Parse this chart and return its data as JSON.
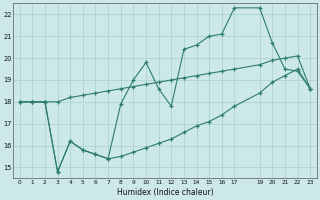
{
  "bg_color": "#cce8e8",
  "line_color": "#2d7d6e",
  "grid_color": "#aacfcf",
  "xlabel": "Humidex (Indice chaleur)",
  "xlim": [
    -0.5,
    23.5
  ],
  "ylim": [
    14.5,
    22.5
  ],
  "xtick_positions": [
    0,
    1,
    2,
    3,
    4,
    5,
    6,
    7,
    8,
    9,
    10,
    11,
    12,
    13,
    14,
    15,
    16,
    17,
    19,
    20,
    21,
    22,
    23
  ],
  "xtick_labels": [
    "0",
    "1",
    "2",
    "3",
    "4",
    "5",
    "6",
    "7",
    "8",
    "9",
    "10",
    "11",
    "12",
    "13",
    "14",
    "15",
    "16",
    "17",
    "19",
    "20",
    "21",
    "22",
    "23"
  ],
  "yticks": [
    15,
    16,
    17,
    18,
    19,
    20,
    21,
    22
  ],
  "x_all": [
    0,
    1,
    2,
    3,
    4,
    5,
    6,
    7,
    8,
    9,
    10,
    11,
    12,
    13,
    14,
    15,
    16,
    17,
    19,
    20,
    21,
    22,
    23
  ],
  "line1_y": [
    18.0,
    18.0,
    18.0,
    18.0,
    18.2,
    18.3,
    18.4,
    18.5,
    18.6,
    18.7,
    18.8,
    18.9,
    19.0,
    19.1,
    19.2,
    19.3,
    19.4,
    19.5,
    19.7,
    19.9,
    20.0,
    20.1,
    18.6
  ],
  "line2_y": [
    18.0,
    18.0,
    18.0,
    14.8,
    16.2,
    15.8,
    15.6,
    15.4,
    17.9,
    19.0,
    19.8,
    18.6,
    17.8,
    20.4,
    20.6,
    21.0,
    21.1,
    22.3,
    22.3,
    20.7,
    19.5,
    19.4,
    18.6
  ],
  "line3_y": [
    18.0,
    18.0,
    18.0,
    14.8,
    16.2,
    15.8,
    15.6,
    15.4,
    15.5,
    15.7,
    15.9,
    16.1,
    16.3,
    16.6,
    16.9,
    17.1,
    17.4,
    17.8,
    18.4,
    18.9,
    19.2,
    19.5,
    18.6
  ]
}
